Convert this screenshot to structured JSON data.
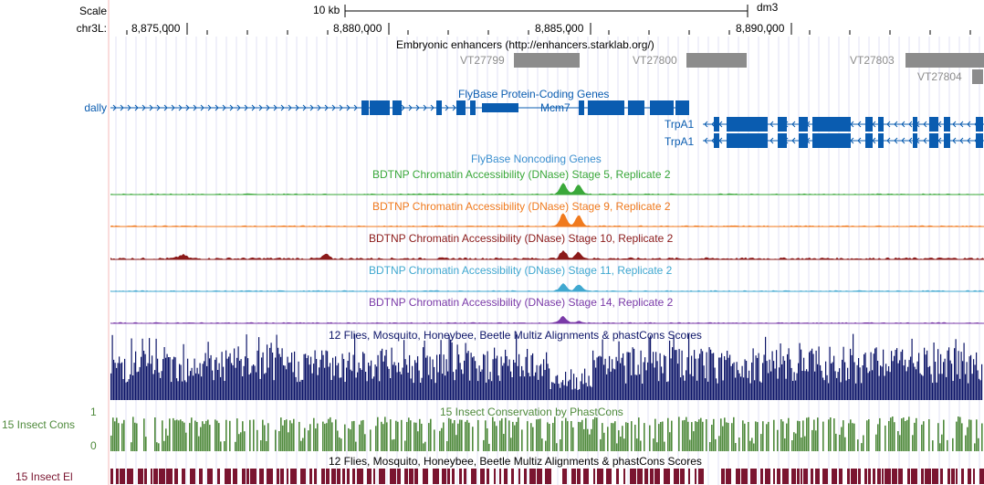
{
  "ruler": {
    "scale_label": "Scale",
    "chrom_label": "chr3L:",
    "scale_bar_text": "10 kb",
    "assembly": "dm3",
    "positions": [
      "8,875,000",
      "8,880,000",
      "8,885,000",
      "8,890,000"
    ]
  },
  "tracks": {
    "enhancers": {
      "title": "Embryonic enhancers (http://enhancers.starklab.org/)",
      "items": [
        "VT27799",
        "VT27800",
        "VT27803",
        "VT27804"
      ],
      "color": "#8c8c8c"
    },
    "genes": {
      "title": "FlyBase Protein-Coding Genes",
      "left_label": "dally",
      "items": [
        "Mcm7",
        "TrpA1",
        "TrpA1"
      ],
      "color": "#0a5cb0"
    },
    "noncoding": {
      "title": "FlyBase Noncoding Genes",
      "color": "#3b8fcf"
    },
    "dnase": [
      {
        "title": "BDTNP Chromatin Accessibility (DNase) Stage 5, Replicate 2",
        "color": "#3aa83a"
      },
      {
        "title": "BDTNP Chromatin Accessibility (DNase) Stage 9, Replicate 2",
        "color": "#f07a1e"
      },
      {
        "title": "BDTNP Chromatin Accessibility (DNase) Stage 10, Replicate 2",
        "color": "#8b1a1a"
      },
      {
        "title": "BDTNP Chromatin Accessibility (DNase) Stage 11, Replicate 2",
        "color": "#40a8d0"
      },
      {
        "title": "BDTNP Chromatin Accessibility (DNase) Stage 14, Replicate 2",
        "color": "#7a3aa8"
      }
    ],
    "multiz": {
      "title": "12 Flies, Mosquito, Honeybee, Beetle Multiz Alignments & phastCons Scores",
      "color": "#0c1468"
    },
    "phastcons": {
      "title": "15 Insect Conservation by PhastCons",
      "left_label": "15 Insect Cons",
      "scale_max": "1",
      "scale_min": "0",
      "color": "#4f8a3c"
    },
    "elements": {
      "title": "12 Flies, Mosquito, Honeybee, Beetle Multiz Alignments & phastCons Scores",
      "left_label": "15 Insect El",
      "color": "#7a1530"
    }
  }
}
